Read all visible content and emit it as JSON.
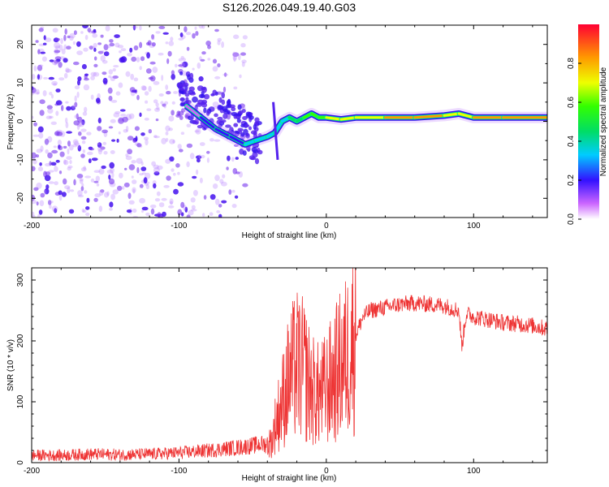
{
  "title": "S126.2026.049.19.40.G03",
  "chart_data": [
    {
      "type": "heatmap",
      "name": "spectrogram",
      "xlabel": "Height of straight line (km)",
      "ylabel": "Frequency (Hz)",
      "xlim": [
        -200,
        150
      ],
      "ylim": [
        -25,
        25
      ],
      "xticks": [
        -200,
        -100,
        0,
        100
      ],
      "yticks": [
        -20,
        -10,
        0,
        10,
        20
      ],
      "ridge": {
        "description": "Dominant frequency track (data units: km, Hz, normalized amplitude)",
        "points": [
          {
            "x": -95,
            "y": 4,
            "a": 0.15
          },
          {
            "x": -85,
            "y": 1,
            "a": 0.2
          },
          {
            "x": -75,
            "y": -2,
            "a": 0.25
          },
          {
            "x": -65,
            "y": -4,
            "a": 0.3
          },
          {
            "x": -55,
            "y": -6,
            "a": 0.35
          },
          {
            "x": -48,
            "y": -5,
            "a": 0.4
          },
          {
            "x": -40,
            "y": -4,
            "a": 0.45
          },
          {
            "x": -35,
            "y": -3,
            "a": 0.4
          },
          {
            "x": -30,
            "y": 0,
            "a": 0.45
          },
          {
            "x": -25,
            "y": 1,
            "a": 0.5
          },
          {
            "x": -20,
            "y": 0,
            "a": 0.55
          },
          {
            "x": -15,
            "y": 1,
            "a": 0.6
          },
          {
            "x": -10,
            "y": 2,
            "a": 0.65
          },
          {
            "x": -5,
            "y": 1,
            "a": 0.7
          },
          {
            "x": 0,
            "y": 1,
            "a": 0.75
          },
          {
            "x": 10,
            "y": 0.5,
            "a": 0.8
          },
          {
            "x": 20,
            "y": 1,
            "a": 0.85
          },
          {
            "x": 40,
            "y": 1,
            "a": 0.9
          },
          {
            "x": 60,
            "y": 1,
            "a": 0.9
          },
          {
            "x": 80,
            "y": 1.5,
            "a": 0.9
          },
          {
            "x": 90,
            "y": 2,
            "a": 0.85
          },
          {
            "x": 100,
            "y": 1,
            "a": 0.9
          },
          {
            "x": 120,
            "y": 1,
            "a": 0.95
          },
          {
            "x": 150,
            "y": 1,
            "a": 0.95
          }
        ]
      },
      "noise_region": {
        "x_from": -200,
        "x_to": -55,
        "y_from": -25,
        "y_to": 25
      }
    },
    {
      "type": "line",
      "name": "snr",
      "xlabel": "Height of straight line (km)",
      "ylabel": "SNR (10 * v/v)",
      "xlim": [
        -200,
        150
      ],
      "ylim": [
        0,
        320
      ],
      "xticks": [
        -200,
        -100,
        0,
        100
      ],
      "yticks": [
        0,
        100,
        200,
        300
      ],
      "color": "#ee3333",
      "series": [
        {
          "name": "SNR",
          "x": [
            -200,
            -180,
            -160,
            -140,
            -120,
            -100,
            -80,
            -60,
            -50,
            -45,
            -40,
            -37,
            -35,
            -30,
            -25,
            -20,
            -15,
            -10,
            -5,
            0,
            5,
            10,
            15,
            20,
            25,
            30,
            40,
            50,
            60,
            70,
            80,
            90,
            92,
            95,
            100,
            110,
            120,
            130,
            140,
            150
          ],
          "y": [
            12,
            12,
            14,
            13,
            14,
            16,
            20,
            25,
            28,
            30,
            30,
            35,
            60,
            100,
            140,
            160,
            150,
            120,
            110,
            120,
            140,
            160,
            180,
            210,
            240,
            250,
            255,
            260,
            262,
            260,
            258,
            250,
            190,
            245,
            240,
            235,
            230,
            228,
            225,
            220
          ]
        }
      ]
    }
  ],
  "colorbar": {
    "label": "Normalized spectral amplitude",
    "ticks": [
      0.0,
      0.2,
      0.4,
      0.6,
      0.8
    ],
    "tick_labels": [
      "0.0",
      "0.2",
      "0.4",
      "0.6",
      "0.8"
    ],
    "range": [
      0,
      1
    ]
  },
  "colors": {
    "line": "#ee3333",
    "ridge_core": "#ff2020",
    "noise": "#7722ee"
  }
}
